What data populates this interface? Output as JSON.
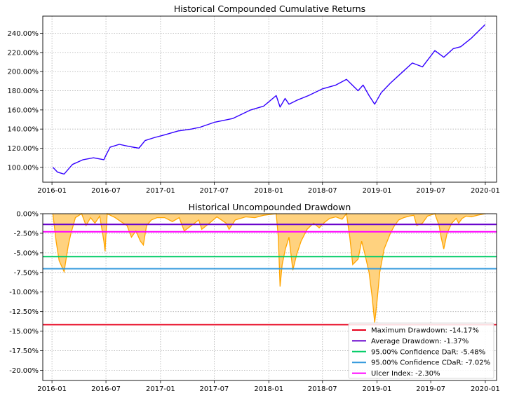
{
  "chart_data": [
    {
      "type": "line",
      "title": "Historical Compounded Cumulative Returns",
      "xlabel": "",
      "ylabel": "",
      "xlim": [
        "2015-12-01",
        "2020-02-08"
      ],
      "ylim": [
        84.5,
        258
      ],
      "grid": true,
      "xticks": [
        "2016-01",
        "2016-07",
        "2017-01",
        "2017-07",
        "2018-01",
        "2018-07",
        "2019-01",
        "2019-07",
        "2020-01"
      ],
      "yticks": [
        100,
        120,
        140,
        160,
        180,
        200,
        220,
        240
      ],
      "ytick_labels": [
        "100.00%",
        "120.00%",
        "140.00%",
        "160.00%",
        "180.00%",
        "200.00%",
        "220.00%",
        "240.00%"
      ],
      "series": [
        {
          "color": "#3300ff",
          "x": [
            "2016-01-04",
            "2016-01-20",
            "2016-02-11",
            "2016-03-10",
            "2016-04-15",
            "2016-05-20",
            "2016-06-24",
            "2016-06-30",
            "2016-07-15",
            "2016-08-15",
            "2016-09-15",
            "2016-10-20",
            "2016-11-10",
            "2016-12-10",
            "2017-01-15",
            "2017-03-01",
            "2017-04-15",
            "2017-05-15",
            "2017-07-01",
            "2017-09-01",
            "2017-11-01",
            "2017-12-15",
            "2018-01-26",
            "2018-02-08",
            "2018-02-25",
            "2018-03-10",
            "2018-04-05",
            "2018-05-15",
            "2018-07-01",
            "2018-08-15",
            "2018-09-20",
            "2018-10-29",
            "2018-11-15",
            "2018-12-05",
            "2018-12-24",
            "2019-01-15",
            "2019-02-15",
            "2019-03-15",
            "2019-04-30",
            "2019-06-03",
            "2019-07-15",
            "2019-08-14",
            "2019-09-15",
            "2019-10-10",
            "2019-11-15",
            "2019-12-31"
          ],
          "y": [
            100,
            95,
            93,
            103,
            108,
            110,
            108,
            112,
            121,
            124,
            122,
            120,
            128,
            131,
            134,
            138,
            140,
            142,
            147,
            151,
            160,
            164,
            175,
            163,
            172,
            166,
            170,
            175,
            182,
            186,
            192,
            180,
            186,
            175,
            166,
            178,
            188,
            196,
            209,
            205,
            222,
            215,
            224,
            226,
            235,
            249
          ]
        }
      ]
    },
    {
      "type": "area",
      "title": "Historical Uncompounded Drawdown",
      "xlabel": "",
      "ylabel": "",
      "xlim": [
        "2015-12-01",
        "2020-02-08"
      ],
      "ylim": [
        -21.3,
        0
      ],
      "grid": true,
      "xticks": [
        "2016-01",
        "2016-07",
        "2017-01",
        "2017-07",
        "2018-01",
        "2018-07",
        "2019-01",
        "2019-07",
        "2020-01"
      ],
      "yticks": [
        0,
        -2.5,
        -5,
        -7.5,
        -10,
        -12.5,
        -15,
        -17.5,
        -20
      ],
      "ytick_labels": [
        "0.00%",
        "-2.50%",
        "-5.00%",
        "-7.50%",
        "-10.00%",
        "-12.50%",
        "-15.00%",
        "-17.50%",
        "-20.00%"
      ],
      "series": [
        {
          "color": "#ffa500",
          "fill": "#ffd27f",
          "x": [
            "2016-01-04",
            "2016-01-15",
            "2016-01-25",
            "2016-02-11",
            "2016-02-25",
            "2016-03-05",
            "2016-03-20",
            "2016-04-10",
            "2016-04-25",
            "2016-05-10",
            "2016-05-25",
            "2016-06-10",
            "2016-06-24",
            "2016-06-28",
            "2016-07-05",
            "2016-08-01",
            "2016-08-20",
            "2016-09-10",
            "2016-09-25",
            "2016-10-10",
            "2016-10-25",
            "2016-11-04",
            "2016-11-15",
            "2016-12-01",
            "2016-12-20",
            "2017-01-15",
            "2017-02-10",
            "2017-03-05",
            "2017-03-22",
            "2017-04-15",
            "2017-05-10",
            "2017-05-20",
            "2017-06-15",
            "2017-07-10",
            "2017-08-10",
            "2017-08-20",
            "2017-09-10",
            "2017-10-15",
            "2017-11-15",
            "2017-12-15",
            "2018-01-26",
            "2018-02-02",
            "2018-02-08",
            "2018-02-15",
            "2018-02-26",
            "2018-03-10",
            "2018-03-23",
            "2018-04-05",
            "2018-04-20",
            "2018-05-10",
            "2018-06-01",
            "2018-06-20",
            "2018-07-05",
            "2018-07-25",
            "2018-08-15",
            "2018-09-05",
            "2018-09-20",
            "2018-10-01",
            "2018-10-11",
            "2018-10-29",
            "2018-11-10",
            "2018-11-20",
            "2018-12-05",
            "2018-12-15",
            "2018-12-24",
            "2018-12-31",
            "2019-01-10",
            "2019-01-25",
            "2019-02-15",
            "2019-03-01",
            "2019-03-15",
            "2019-04-01",
            "2019-04-20",
            "2019-05-05",
            "2019-05-15",
            "2019-06-03",
            "2019-06-20",
            "2019-07-15",
            "2019-07-29",
            "2019-08-05",
            "2019-08-14",
            "2019-08-25",
            "2019-09-10",
            "2019-09-25",
            "2019-10-03",
            "2019-10-15",
            "2019-10-28",
            "2019-11-15",
            "2019-12-05",
            "2019-12-31"
          ],
          "y": [
            0,
            -3.5,
            -6,
            -7.4,
            -4,
            -2.5,
            -0.5,
            0,
            -1.5,
            -0.5,
            -1.2,
            -0.3,
            -3.5,
            -4.8,
            0,
            -0.5,
            -1,
            -1.5,
            -3,
            -2.2,
            -3.5,
            -4,
            -1.5,
            -0.8,
            -0.5,
            -0.5,
            -1,
            -0.5,
            -2.2,
            -1.5,
            -0.8,
            -2,
            -1.2,
            -0.4,
            -1.2,
            -2,
            -0.8,
            -0.4,
            -0.5,
            -0.2,
            0,
            -3,
            -9.3,
            -6.5,
            -4.5,
            -3,
            -7.2,
            -5.2,
            -3.5,
            -2,
            -1.2,
            -1.8,
            -1.2,
            -0.6,
            -0.4,
            -0.7,
            0,
            -3,
            -6.5,
            -5.8,
            -3.5,
            -5,
            -7.5,
            -10.5,
            -13.9,
            -11.5,
            -7.5,
            -4.5,
            -2.5,
            -1.5,
            -0.8,
            -0.5,
            -0.3,
            -0.2,
            -1.5,
            -1.2,
            -0.3,
            0,
            -1.5,
            -3,
            -4.5,
            -2.5,
            -1.2,
            -0.6,
            -1.2,
            -0.6,
            -0.3,
            -0.4,
            -0.2,
            0
          ]
        }
      ],
      "reference_lines": [
        {
          "label": "Maximum Drawdown: -14.17%",
          "value": -14.17,
          "color": "#e8001c"
        },
        {
          "label": "Average Drawdown: -1.37%",
          "value": -1.37,
          "color": "#6600cc"
        },
        {
          "label": "95.00% Confidence DaR: -5.48%",
          "value": -5.48,
          "color": "#00cc66"
        },
        {
          "label": "95.00% Confidence CDaR: -7.02%",
          "value": -7.02,
          "color": "#3399dd"
        },
        {
          "label": "Ulcer Index: -2.30%",
          "value": -2.3,
          "color": "#ff00ff"
        }
      ],
      "legend_position": "lower-right"
    }
  ]
}
